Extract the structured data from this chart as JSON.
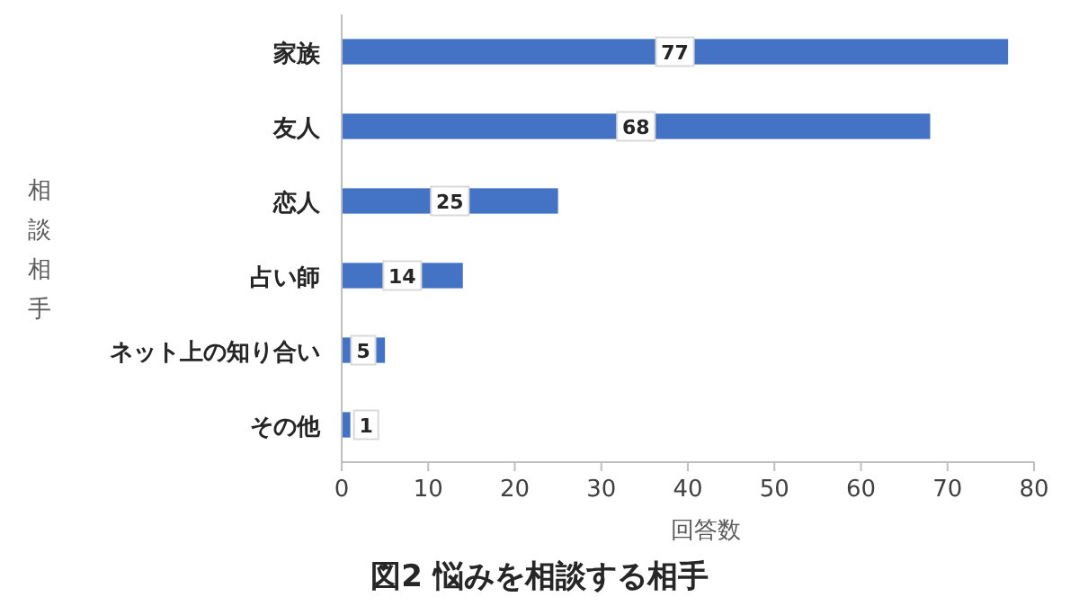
{
  "chart_data": {
    "type": "bar",
    "orientation": "horizontal",
    "title": "図2 悩みを相談する相手",
    "xlabel": "回答数",
    "ylabel": "相談相手",
    "categories": [
      "家族",
      "友人",
      "恋人",
      "占い師",
      "ネット上の知り合い",
      "その他"
    ],
    "values": [
      77,
      68,
      25,
      14,
      5,
      1
    ],
    "color": "#4472c4",
    "xlim": [
      0,
      80
    ],
    "xticks": [
      0,
      10,
      20,
      30,
      40,
      50,
      60,
      70,
      80
    ],
    "data_labels": true,
    "grid": false
  }
}
